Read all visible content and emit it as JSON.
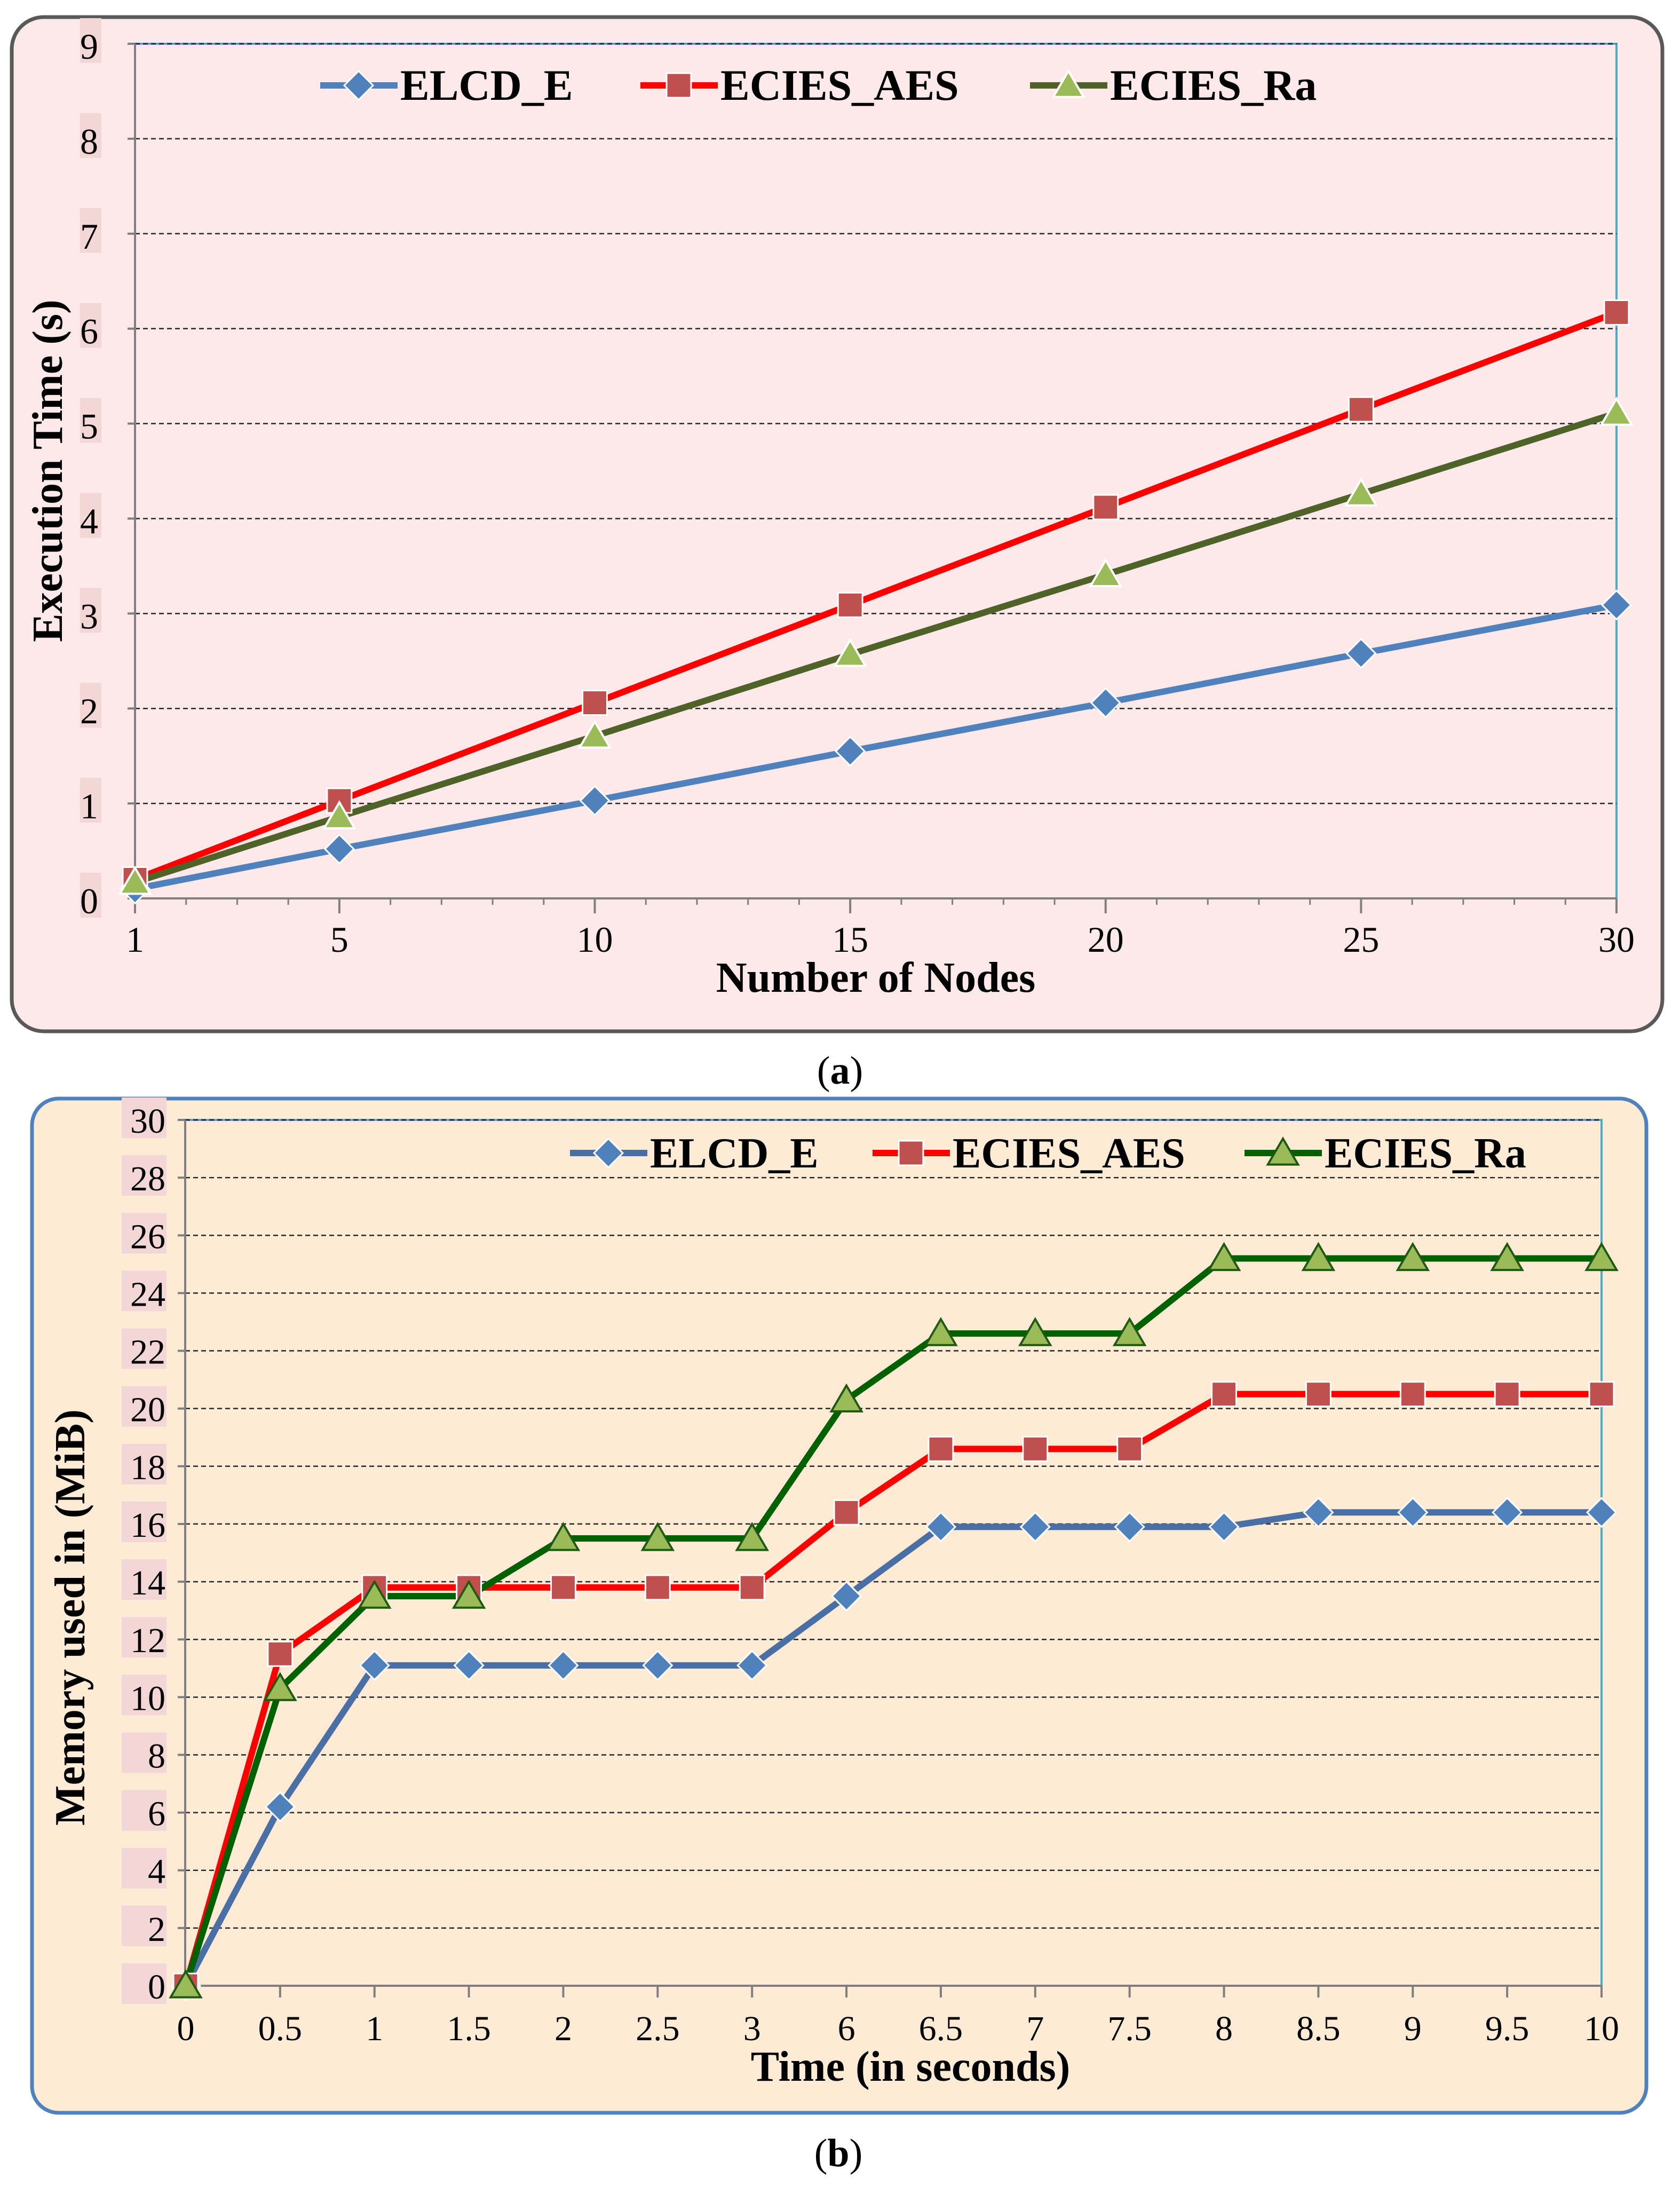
{
  "chart_data": [
    {
      "id": "a",
      "type": "line",
      "caption": "(a)",
      "caption_parts": [
        "(",
        "a",
        ")"
      ],
      "xlabel": "Number of Nodes",
      "ylabel": "Execution Time (s)",
      "ylim": [
        0,
        9
      ],
      "yticks": [
        "0",
        "1",
        "2",
        "3",
        "4",
        "5",
        "6",
        "7",
        "8",
        "9"
      ],
      "categories": [
        "1",
        "5",
        "10",
        "15",
        "20",
        "25",
        "30"
      ],
      "x": [
        1,
        5,
        10,
        15,
        20,
        25,
        30
      ],
      "xlim": [
        1,
        30
      ],
      "grid": true,
      "legend_position": "top",
      "background": "#fde9e9",
      "border": "#595959",
      "series": [
        {
          "name": "ELCD_E",
          "marker": "diamond",
          "color": "#4f81bd",
          "fill": "#4f81bd",
          "values": [
            0.1,
            0.52,
            1.03,
            1.55,
            2.06,
            2.58,
            3.09
          ]
        },
        {
          "name": "ECIES_AES",
          "marker": "square",
          "color": "#ff0000",
          "fill": "#c0504d",
          "values": [
            0.2,
            1.03,
            2.06,
            3.09,
            4.12,
            5.15,
            6.17
          ]
        },
        {
          "name": "ECIES_Ra",
          "marker": "triangle",
          "color": "#4f6228",
          "fill": "#9bbb59",
          "values": [
            0.17,
            0.86,
            1.71,
            2.57,
            3.41,
            4.26,
            5.11
          ]
        }
      ]
    },
    {
      "id": "b",
      "type": "line",
      "caption": "(b)",
      "caption_parts": [
        "(",
        "b",
        ")"
      ],
      "xlabel": "Time (in seconds)",
      "ylabel": "Memory used in (MiB)",
      "ylim": [
        0,
        30
      ],
      "yticks": [
        "0",
        "2",
        "4",
        "6",
        "8",
        "10",
        "12",
        "14",
        "16",
        "18",
        "20",
        "22",
        "24",
        "26",
        "28",
        "30"
      ],
      "categories": [
        "0",
        "0.5",
        "1",
        "1.5",
        "2",
        "2.5",
        "3",
        "6",
        "6.5",
        "7",
        "7.5",
        "8",
        "8.5",
        "9",
        "9.5",
        "10"
      ],
      "grid": true,
      "legend_position": "top-right",
      "background": "#fdebd6",
      "border": "#4f81bd",
      "series": [
        {
          "name": "ELCD_E",
          "marker": "diamond",
          "color": "#4a6fa5",
          "fill": "#4f81bd",
          "values": [
            0,
            6.2,
            11.1,
            11.1,
            11.1,
            11.1,
            11.1,
            13.5,
            15.9,
            15.9,
            15.9,
            15.9,
            16.4,
            16.4,
            16.4,
            16.4
          ]
        },
        {
          "name": "ECIES_AES",
          "marker": "square",
          "color": "#ff0000",
          "fill": "#c0504d",
          "values": [
            0,
            11.5,
            13.8,
            13.8,
            13.8,
            13.8,
            13.8,
            16.4,
            18.6,
            18.6,
            18.6,
            20.5,
            20.5,
            20.5,
            20.5,
            20.5
          ]
        },
        {
          "name": "ECIES_Ra",
          "marker": "triangle",
          "color": "#006100",
          "fill": "#9bbb59",
          "values": [
            0,
            10.3,
            13.5,
            13.5,
            15.5,
            15.5,
            15.5,
            20.3,
            22.6,
            22.6,
            22.6,
            25.2,
            25.2,
            25.2,
            25.2,
            25.2
          ]
        }
      ]
    }
  ]
}
